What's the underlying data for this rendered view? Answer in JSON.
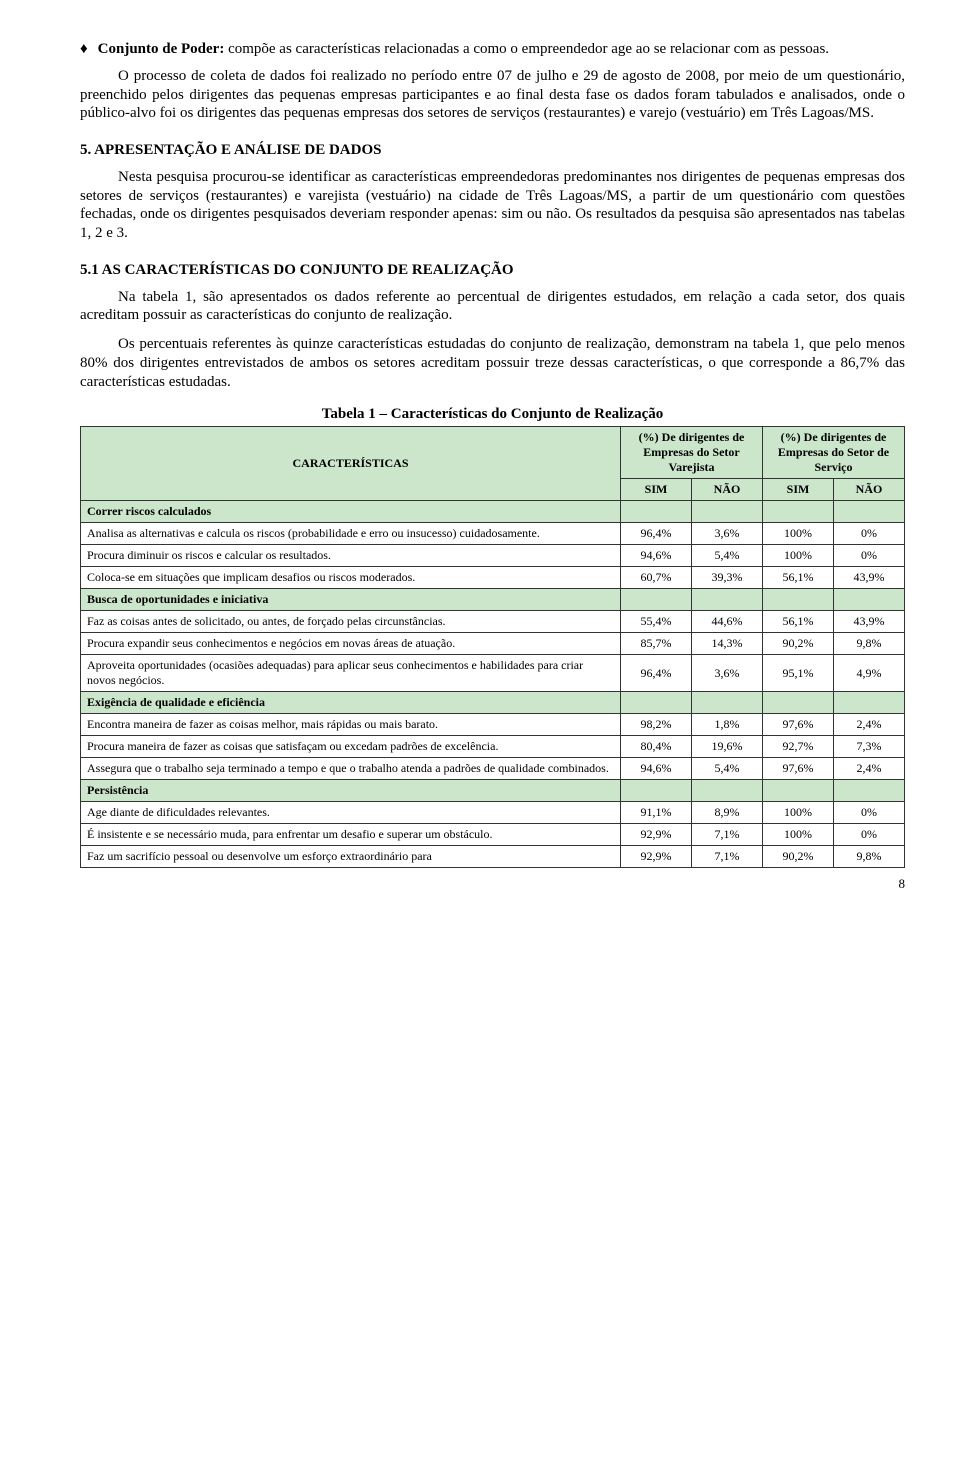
{
  "bullet": {
    "title": "Conjunto de Poder:",
    "text": " compõe as características relacionadas a como o empreendedor age ao se relacionar com as pessoas."
  },
  "para1": "O processo de coleta de dados foi realizado no período entre 07 de julho e 29 de agosto de 2008, por meio de um questionário, preenchido pelos dirigentes das pequenas empresas participantes e ao final desta fase os dados foram tabulados e analisados, onde o público-alvo foi os dirigentes das pequenas empresas dos setores de serviços (restaurantes) e varejo (vestuário) em Três Lagoas/MS.",
  "sec5": "5. APRESENTAÇÃO E ANÁLISE DE DADOS",
  "para2": "Nesta pesquisa procurou-se identificar as características empreendedoras predominantes nos dirigentes de pequenas empresas dos setores de serviços (restaurantes) e varejista (vestuário) na cidade de Três Lagoas/MS, a partir de um questionário com questões fechadas, onde os dirigentes pesquisados deveriam responder apenas: sim ou não. Os resultados da pesquisa são apresentados nas tabelas 1, 2 e 3.",
  "sec51": "5.1 AS CARACTERÍSTICAS DO CONJUNTO DE REALIZAÇÃO",
  "para3": "Na tabela 1, são apresentados os dados referente ao percentual de dirigentes estudados, em relação a cada setor, dos quais acreditam possuir as características do conjunto de realização.",
  "para4": "Os percentuais referentes às quinze características estudadas do conjunto de realização, demonstram na tabela 1, que pelo menos 80% dos dirigentes entrevistados de ambos os setores acreditam possuir treze dessas características, o que corresponde a 86,7% das características estudadas.",
  "table": {
    "title": "Tabela 1 – Características do Conjunto de Realização",
    "col_char": "CARACTERÍSTICAS",
    "col_varejista": "(%) De dirigentes de Empresas do Setor Varejista",
    "col_servico": "(%) De dirigentes de Empresas do Setor de Serviço",
    "sim": "SIM",
    "nao": "NÃO",
    "header_bg": "#cce6cc",
    "sections": [
      {
        "name": "Correr riscos calculados",
        "rows": [
          {
            "c": "Analisa as alternativas e calcula os riscos (probabilidade e erro ou insucesso) cuidadosamente.",
            "v": [
              "96,4%",
              "3,6%",
              "100%",
              "0%"
            ]
          },
          {
            "c": "Procura diminuir os riscos e calcular os resultados.",
            "v": [
              "94,6%",
              "5,4%",
              "100%",
              "0%"
            ]
          },
          {
            "c": "Coloca-se em situações que implicam desafios ou riscos moderados.",
            "v": [
              "60,7%",
              "39,3%",
              "56,1%",
              "43,9%"
            ]
          }
        ]
      },
      {
        "name": "Busca de oportunidades e iniciativa",
        "rows": [
          {
            "c": "Faz as coisas antes de solicitado, ou antes, de forçado pelas circunstâncias.",
            "v": [
              "55,4%",
              "44,6%",
              "56,1%",
              "43,9%"
            ]
          },
          {
            "c": "Procura expandir seus conhecimentos e negócios em novas áreas de atuação.",
            "v": [
              "85,7%",
              "14,3%",
              "90,2%",
              "9,8%"
            ]
          },
          {
            "c": "Aproveita oportunidades (ocasiões adequadas) para aplicar seus conhecimentos e habilidades para criar novos negócios.",
            "v": [
              "96,4%",
              "3,6%",
              "95,1%",
              "4,9%"
            ]
          }
        ]
      },
      {
        "name": "Exigência de qualidade e eficiência",
        "rows": [
          {
            "c": "Encontra maneira de fazer as coisas melhor, mais rápidas ou mais barato.",
            "v": [
              "98,2%",
              "1,8%",
              "97,6%",
              "2,4%"
            ]
          },
          {
            "c": "Procura maneira de fazer as coisas que satisfaçam ou excedam padrões de excelência.",
            "v": [
              "80,4%",
              "19,6%",
              "92,7%",
              "7,3%"
            ]
          },
          {
            "c": "Assegura que o trabalho seja terminado a tempo e que o trabalho atenda a padrões de qualidade combinados.",
            "v": [
              "94,6%",
              "5,4%",
              "97,6%",
              "2,4%"
            ]
          }
        ]
      },
      {
        "name": "Persistência",
        "rows": [
          {
            "c": "Age diante de dificuldades relevantes.",
            "v": [
              "91,1%",
              "8,9%",
              "100%",
              "0%"
            ]
          },
          {
            "c": "É insistente e se necessário muda, para enfrentar um desafio e superar um obstáculo.",
            "v": [
              "92,9%",
              "7,1%",
              "100%",
              "0%"
            ]
          },
          {
            "c": "Faz um sacrifício pessoal ou desenvolve um esforço extraordinário para",
            "v": [
              "92,9%",
              "7,1%",
              "90,2%",
              "9,8%"
            ]
          }
        ]
      }
    ]
  },
  "page": "8"
}
